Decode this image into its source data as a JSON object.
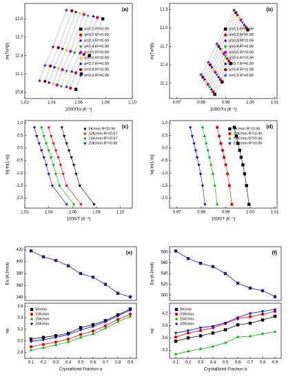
{
  "chart_data": [
    {
      "type": "scatter",
      "label": "(a)",
      "xlabel": "1000/Tα (K⁻¹)",
      "ylabel": "ln(Tα²/β)",
      "legend": "right",
      "line_color": "#aaaaaa",
      "xlim": [
        1.02,
        1.1
      ],
      "xticks": [
        1.02,
        1.04,
        1.06,
        1.08,
        {
          "value": 1.1,
          "label": "1.10"
        }
      ],
      "ylim": [
        10.7,
        12.25
      ],
      "yticks": [
        10.8,
        11.1,
        11.4,
        11.7,
        {
          "value": 12,
          "label": "12.0"
        }
      ],
      "series": [
        {
          "name": "α=0.1 R²=0.99",
          "color": "#000000",
          "marker": "square",
          "x": [
            1.078,
            1.068,
            1.062,
            1.058
          ],
          "values": [
            12.0,
            11.4,
            11.1,
            10.85
          ]
        },
        {
          "name": "α=0.2 R²=0.99",
          "color": "#e00000",
          "marker": "circle",
          "x": [
            1.074,
            1.064,
            1.058,
            1.054
          ],
          "values": [
            12.02,
            11.42,
            11.12,
            10.87
          ]
        },
        {
          "name": "α=0.3 R²=0.99",
          "color": "#0000e0",
          "marker": "up",
          "x": [
            1.071,
            1.061,
            1.055,
            1.051
          ],
          "values": [
            12.04,
            11.44,
            11.14,
            10.89
          ]
        },
        {
          "name": "α=0.4 R²=0.99",
          "color": "#00a000",
          "marker": "down",
          "x": [
            1.067,
            1.057,
            1.051,
            1.047
          ],
          "values": [
            12.05,
            11.45,
            11.15,
            10.9
          ]
        },
        {
          "name": "α=0.5 R²=0.99",
          "color": "#c000c0",
          "marker": "diamond",
          "x": [
            1.064,
            1.054,
            1.048,
            1.044
          ],
          "values": [
            12.07,
            11.47,
            11.17,
            10.92
          ]
        },
        {
          "name": "α=0.6 R²=0.99",
          "color": "#d0c000",
          "marker": "left",
          "x": [
            1.061,
            1.051,
            1.045,
            1.041
          ],
          "values": [
            12.09,
            11.49,
            11.19,
            10.94
          ]
        },
        {
          "name": "α=0.7 R²=0.99",
          "color": "#000080",
          "marker": "right",
          "x": [
            1.058,
            1.048,
            1.042,
            1.038
          ],
          "values": [
            12.11,
            11.51,
            11.21,
            10.96
          ]
        },
        {
          "name": "α=0.8 R²=0.99",
          "color": "#800000",
          "marker": "hex",
          "x": [
            1.055,
            1.045,
            1.039,
            1.035
          ],
          "values": [
            12.13,
            11.53,
            11.23,
            10.98
          ]
        },
        {
          "name": "α=0.9 R²=0.99",
          "color": "#2030c0",
          "marker": "star",
          "x": [
            1.051,
            1.041,
            1.035,
            1.031
          ],
          "values": [
            12.14,
            11.54,
            11.24,
            10.99
          ]
        }
      ]
    },
    {
      "type": "scatter",
      "label": "(b)",
      "xlabel": "1000/Tα (K⁻¹)",
      "ylabel": "ln(Tα²/β)",
      "legend": "right",
      "line_color": "#aaaaaa",
      "xlim": [
        0.967,
        1.011
      ],
      "xticks": [
        0.97,
        0.98,
        0.99,
        {
          "value": 1,
          "label": "1.00"
        },
        1.01
      ],
      "ylim": [
        10.85,
        12.4
      ],
      "yticks": [
        11.1,
        11.4,
        11.7,
        {
          "value": 12,
          "label": "12.0"
        },
        12.3
      ],
      "series": [
        {
          "name": "α=0.1 R²=0.99",
          "color": "#000000",
          "marker": "square",
          "x": [
            0.999,
            0.992,
            0.9885,
            0.9855
          ],
          "values": [
            11.97,
            11.42,
            11.12,
            10.92
          ]
        },
        {
          "name": "α=0.2 R²=0.99",
          "color": "#e00000",
          "marker": "circle",
          "x": [
            0.9983,
            0.9913,
            0.9878,
            0.9848
          ],
          "values": [
            12.01,
            11.46,
            11.16,
            10.96
          ]
        },
        {
          "name": "α=0.3 R²=0.99",
          "color": "#0000e0",
          "marker": "up",
          "x": [
            0.9976,
            0.9906,
            0.9871,
            0.9841
          ],
          "values": [
            12.05,
            11.5,
            11.2,
            11.0
          ]
        },
        {
          "name": "α=0.4 R²=0.99",
          "color": "#00a000",
          "marker": "down",
          "x": [
            0.9969,
            0.9899,
            0.9864,
            0.9834
          ],
          "values": [
            12.09,
            11.54,
            11.24,
            11.04
          ]
        },
        {
          "name": "α=0.5 R²=0.99",
          "color": "#c000c0",
          "marker": "diamond",
          "x": [
            0.9962,
            0.9892,
            0.9857,
            0.9827
          ],
          "values": [
            12.13,
            11.58,
            11.28,
            11.08
          ]
        },
        {
          "name": "α=0.6 R²=0.99",
          "color": "#d0c000",
          "marker": "left",
          "x": [
            0.9955,
            0.9885,
            0.985,
            0.982
          ],
          "values": [
            12.17,
            11.62,
            11.32,
            11.12
          ]
        },
        {
          "name": "α=0.7 R²=0.99",
          "color": "#000080",
          "marker": "right",
          "x": [
            0.9948,
            0.9878,
            0.9843,
            0.9813
          ],
          "values": [
            12.21,
            11.66,
            11.36,
            11.16
          ]
        },
        {
          "name": "α=0.8 R²=0.98",
          "color": "#800000",
          "marker": "hex",
          "x": [
            0.9941,
            0.9871,
            0.9836,
            0.9806
          ],
          "values": [
            12.25,
            11.7,
            11.4,
            11.2
          ]
        },
        {
          "name": "α=0.9 R²=0.99",
          "color": "#2030c0",
          "marker": "star",
          "x": [
            0.9934,
            0.9864,
            0.9829,
            0.9799
          ],
          "values": [
            12.29,
            11.74,
            11.44,
            11.24
          ]
        }
      ]
    },
    {
      "type": "scatter",
      "label": "(c)",
      "xlabel": "1000/T (K⁻¹)",
      "ylabel": "ln[-ln(1-α)]",
      "legend": "upper right",
      "xlim": [
        1.02,
        1.11
      ],
      "xticks": [
        1.02,
        1.04,
        1.06,
        1.08,
        {
          "value": 1.1,
          "label": "1.10"
        }
      ],
      "ylim": [
        -2.4,
        1.1
      ],
      "yticks": [
        {
          "value": 1,
          "label": "1.0"
        },
        0.5,
        {
          "value": 0,
          "label": "0.0"
        },
        -0.5,
        {
          "value": -1,
          "label": "-1.0"
        },
        -1.5,
        {
          "value": -2,
          "label": "-2.0"
        }
      ],
      "series": [
        {
          "name": "5K/min R²=0.96",
          "color": "#000000",
          "marker": "down",
          "x": [
            1.078,
            1.066,
            1.063,
            1.061,
            1.059,
            1.057,
            1.055,
            1.053,
            1.051
          ],
          "values": [
            -2.25,
            -1.5,
            -1.03,
            -0.67,
            -0.37,
            -0.09,
            0.19,
            0.48,
            0.83
          ]
        },
        {
          "name": "10K/min R²=0.97",
          "color": "#e00000",
          "marker": "down",
          "x": [
            1.067,
            1.055,
            1.052,
            1.05,
            1.048,
            1.046,
            1.044,
            1.042,
            1.04
          ],
          "values": [
            -2.25,
            -1.5,
            -1.03,
            -0.67,
            -0.37,
            -0.09,
            0.19,
            0.48,
            0.83
          ]
        },
        {
          "name": "15K/min R²=0.97",
          "color": "#00b000",
          "marker": "down",
          "x": [
            1.061,
            1.049,
            1.046,
            1.044,
            1.042,
            1.04,
            1.038,
            1.036,
            1.034
          ],
          "values": [
            -2.25,
            -1.5,
            -1.03,
            -0.67,
            -0.37,
            -0.09,
            0.19,
            0.48,
            0.83
          ]
        },
        {
          "name": "20K/min R²=0.96",
          "color": "#0000e0",
          "marker": "down",
          "x": [
            1.055,
            1.043,
            1.04,
            1.038,
            1.036,
            1.034,
            1.032,
            1.03,
            1.028
          ],
          "values": [
            -2.25,
            -1.5,
            -1.03,
            -0.67,
            -0.37,
            -0.09,
            0.19,
            0.48,
            0.83
          ]
        }
      ]
    },
    {
      "type": "scatter",
      "label": "(d)",
      "xlabel": "1000/T (K⁻¹)",
      "ylabel": "ln[-ln(1-α)]",
      "legend": "upper right",
      "xlim": [
        0.967,
        1.011
      ],
      "xticks": [
        0.97,
        0.98,
        0.99,
        {
          "value": 1,
          "label": "1.00"
        },
        1.01
      ],
      "ylim": [
        -2.4,
        1.1
      ],
      "yticks": [
        {
          "value": 1,
          "label": "1.0"
        },
        0.5,
        {
          "value": 0,
          "label": "0.0"
        },
        -0.5,
        {
          "value": -1,
          "label": "-1.0"
        },
        -1.5,
        {
          "value": -2,
          "label": "-2.0"
        }
      ],
      "series": [
        {
          "name": "5K/min R²=0.95",
          "color": "#000000",
          "marker": "square",
          "x": [
            0.9995,
            0.9985,
            0.9977,
            0.997,
            0.9963,
            0.9957,
            0.995,
            0.9943,
            0.9935
          ],
          "values": [
            -2.25,
            -1.5,
            -1.03,
            -0.67,
            -0.37,
            -0.09,
            0.19,
            0.48,
            0.83
          ]
        },
        {
          "name": "10K/min R²=0.96",
          "color": "#e00000",
          "marker": "circle",
          "x": [
            0.9925,
            0.9915,
            0.9907,
            0.99,
            0.9893,
            0.9887,
            0.988,
            0.9873,
            0.9865
          ],
          "values": [
            -2.25,
            -1.5,
            -1.03,
            -0.67,
            -0.37,
            -0.09,
            0.19,
            0.48,
            0.83
          ]
        },
        {
          "name": "15K/min R²=0.96",
          "color": "#00b000",
          "marker": "up",
          "x": [
            0.9865,
            0.9855,
            0.9847,
            0.984,
            0.9833,
            0.9827,
            0.982,
            0.9813,
            0.9805
          ],
          "values": [
            -2.25,
            -1.5,
            -1.03,
            -0.67,
            -0.37,
            -0.09,
            0.19,
            0.48,
            0.83
          ]
        },
        {
          "name": "20K/min R²=0.95",
          "color": "#0000e0",
          "marker": "down",
          "x": [
            0.9815,
            0.9805,
            0.9797,
            0.979,
            0.9783,
            0.9777,
            0.977,
            0.9763,
            0.9755
          ],
          "values": [
            -2.25,
            -1.5,
            -1.03,
            -0.67,
            -0.37,
            -0.09,
            0.19,
            0.48,
            0.83
          ]
        }
      ]
    },
    {
      "type": "line",
      "label": "(e)",
      "ylabel": "Eα (KJ/mol)",
      "xlim": [
        0.05,
        0.95
      ],
      "x": [
        0.1,
        0.2,
        0.3,
        0.4,
        0.5,
        0.6,
        0.7,
        0.8,
        0.9
      ],
      "ylim": [
        335,
        425
      ],
      "yticks": [
        340,
        360,
        380,
        400,
        420
      ],
      "series": [
        {
          "color": "#1a237e",
          "marker": "square",
          "values": [
            418,
            408,
            402,
            393,
            380,
            374,
            362,
            347,
            341
          ]
        }
      ]
    },
    {
      "type": "line",
      "xlabel": "Crystallized Fraction α",
      "ylabel": "nα",
      "legend": "upper left",
      "xlim": [
        0.05,
        0.95
      ],
      "x": [
        0.1,
        0.2,
        0.3,
        0.4,
        0.5,
        0.6,
        0.7,
        0.8,
        0.9
      ],
      "xticks": [
        0.1,
        0.2,
        0.3,
        0.4,
        0.5,
        0.6,
        0.7,
        0.8,
        0.9
      ],
      "ylim": [
        2.7,
        3.65
      ],
      "yticks": [
        2.8,
        {
          "value": 3,
          "label": "3.0"
        },
        3.2,
        3.4,
        3.6
      ],
      "series": [
        {
          "name": "5K/min",
          "color": "#000000",
          "marker": "square",
          "values": [
            3.03,
            3.06,
            3.09,
            3.13,
            3.23,
            3.28,
            3.35,
            3.45,
            3.55
          ]
        },
        {
          "name": "10K/min",
          "color": "#e00000",
          "marker": "circle",
          "values": [
            2.9,
            2.94,
            2.98,
            3.03,
            3.11,
            3.17,
            3.26,
            3.37,
            3.46
          ]
        },
        {
          "name": "15K/min",
          "color": "#00b000",
          "marker": "up",
          "values": [
            2.84,
            2.88,
            2.93,
            2.98,
            3.06,
            3.12,
            3.22,
            3.33,
            3.42
          ]
        },
        {
          "name": "20K/min",
          "color": "#0000e0",
          "marker": "down",
          "values": [
            2.99,
            3.02,
            3.06,
            3.11,
            3.19,
            3.25,
            3.33,
            3.43,
            3.53
          ]
        }
      ]
    },
    {
      "type": "line",
      "label": "(f)",
      "ylabel": "Eα (KJ/mol)",
      "xlim": [
        0.05,
        0.95
      ],
      "x": [
        0.1,
        0.2,
        0.3,
        0.4,
        0.5,
        0.6,
        0.7,
        0.8,
        0.9
      ],
      "ylim": [
        490,
        590
      ],
      "yticks": [
        500,
        520,
        540,
        560,
        580
      ],
      "series": [
        {
          "color": "#1a237e",
          "marker": "square",
          "values": [
            582,
            568,
            559,
            553,
            540,
            522,
            513,
            508,
            497
          ]
        }
      ]
    },
    {
      "type": "line",
      "xlabel": "Crystallized Fraction α",
      "ylabel": "nα",
      "legend": "upper left",
      "xlim": [
        0.05,
        0.95
      ],
      "x": [
        0.1,
        0.2,
        0.3,
        0.4,
        0.5,
        0.6,
        0.7,
        0.8,
        0.9
      ],
      "xticks": [
        0.1,
        0.2,
        0.3,
        0.4,
        0.5,
        0.6,
        0.7,
        0.8,
        0.9
      ],
      "ylim": [
        3.1,
        4.45
      ],
      "yticks": [
        3.3,
        3.6,
        3.9,
        4.2
      ],
      "series": [
        {
          "name": "5K/min",
          "color": "#000000",
          "marker": "square",
          "values": [
            3.52,
            3.6,
            3.65,
            3.72,
            3.8,
            3.92,
            3.96,
            4.04,
            4.13
          ]
        },
        {
          "name": "10K/min",
          "color": "#e00000",
          "marker": "circle",
          "values": [
            3.62,
            3.72,
            3.78,
            3.85,
            3.95,
            4.07,
            4.12,
            4.18,
            4.25
          ]
        },
        {
          "name": "15K/min",
          "color": "#00b000",
          "marker": "up",
          "values": [
            3.2,
            3.27,
            3.33,
            3.39,
            3.48,
            3.62,
            3.64,
            3.7,
            3.75
          ]
        },
        {
          "name": "20K/min",
          "color": "#0000e0",
          "marker": "down",
          "values": [
            3.72,
            3.78,
            3.85,
            3.89,
            3.97,
            4.1,
            4.2,
            4.25,
            4.3
          ]
        }
      ]
    }
  ]
}
